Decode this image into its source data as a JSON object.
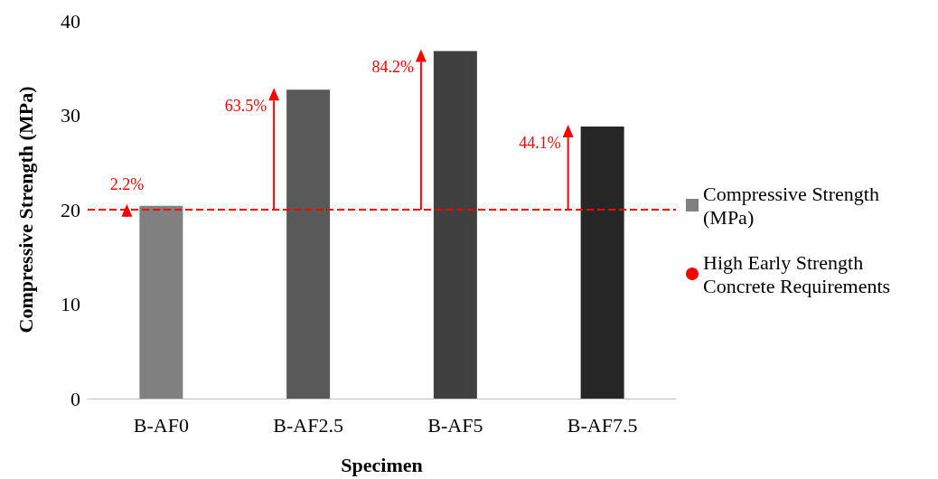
{
  "chart_data": {
    "type": "bar",
    "xlabel": "Specimen",
    "ylabel": "Compressive Strength (MPa)",
    "categories": [
      "B-AF0",
      "B-AF2.5",
      "B-AF5",
      "B-AF7.5"
    ],
    "series": [
      {
        "name": "Compressive Strength (MPa)",
        "color": "#808080",
        "colors": [
          "#808080",
          "#595959",
          "#404040",
          "#262626"
        ],
        "values": [
          20.4,
          32.7,
          36.8,
          28.8
        ]
      }
    ],
    "ylim": [
      0,
      40
    ],
    "yticks": [
      0,
      10,
      20,
      30,
      40
    ],
    "grid": false,
    "legend": "right",
    "ref_lines": [
      {
        "axis": "y",
        "value": 20,
        "label": "High Early Strength Concrete Requirements",
        "color": "#ff0000",
        "line_style": "dashed"
      }
    ],
    "annotations": [
      {
        "text": "2.2%",
        "x": "B-AF0",
        "y": 20.4
      },
      {
        "text": "63.5%",
        "x": "B-AF2.5",
        "y": 32.7
      },
      {
        "text": "84.2%",
        "x": "B-AF5",
        "y": 36.8
      },
      {
        "text": "44.1%",
        "x": "B-AF7.5",
        "y": 28.8
      }
    ]
  }
}
